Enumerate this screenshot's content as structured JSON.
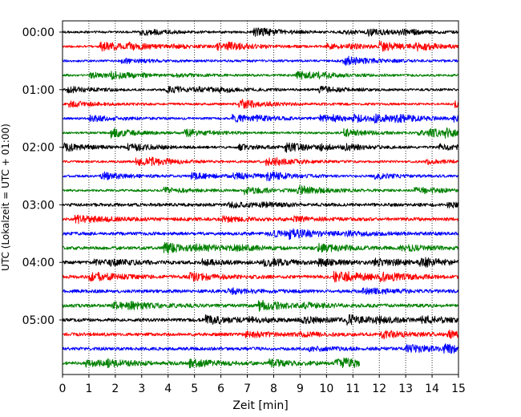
{
  "chart_data": {
    "type": "line",
    "title": "",
    "xlabel": "Zeit  [min]",
    "ylabel": "UTC (Lokalzeit = UTC + 01:00)",
    "xlim": [
      0,
      15
    ],
    "x_ticks": [
      0,
      1,
      2,
      3,
      4,
      5,
      6,
      7,
      8,
      9,
      10,
      11,
      12,
      13,
      14,
      15
    ],
    "x_tick_labels": [
      "0",
      "1",
      "2",
      "3",
      "4",
      "5",
      "6",
      "7",
      "8",
      "9",
      "10",
      "11",
      "12",
      "13",
      "14",
      "15"
    ],
    "y_tick_labels": [
      "00:00",
      "01:00",
      "02:00",
      "03:00",
      "04:00",
      "05:00"
    ],
    "y_tick_trace_index": [
      0,
      4,
      8,
      12,
      16,
      20
    ],
    "minutes_per_trace": 15,
    "grid": "vertical dotted",
    "color_cycle": [
      "#000000",
      "#ff0000",
      "#0000ff",
      "#008000"
    ],
    "traces": [
      {
        "start": "00:00",
        "end_minute": 15
      },
      {
        "start": "00:15",
        "end_minute": 15
      },
      {
        "start": "00:30",
        "end_minute": 15
      },
      {
        "start": "00:45",
        "end_minute": 15
      },
      {
        "start": "01:00",
        "end_minute": 15
      },
      {
        "start": "01:15",
        "end_minute": 15
      },
      {
        "start": "01:30",
        "end_minute": 15
      },
      {
        "start": "01:45",
        "end_minute": 15
      },
      {
        "start": "02:00",
        "end_minute": 15
      },
      {
        "start": "02:15",
        "end_minute": 15
      },
      {
        "start": "02:30",
        "end_minute": 15
      },
      {
        "start": "02:45",
        "end_minute": 15
      },
      {
        "start": "03:00",
        "end_minute": 15
      },
      {
        "start": "03:15",
        "end_minute": 15
      },
      {
        "start": "03:30",
        "end_minute": 15
      },
      {
        "start": "03:45",
        "end_minute": 15
      },
      {
        "start": "04:00",
        "end_minute": 15
      },
      {
        "start": "04:15",
        "end_minute": 15
      },
      {
        "start": "04:30",
        "end_minute": 15
      },
      {
        "start": "04:45",
        "end_minute": 15
      },
      {
        "start": "05:00",
        "end_minute": 15
      },
      {
        "start": "05:15",
        "end_minute": 15
      },
      {
        "start": "05:30",
        "end_minute": 15
      },
      {
        "start": "05:45",
        "end_minute": 11.25
      }
    ]
  }
}
